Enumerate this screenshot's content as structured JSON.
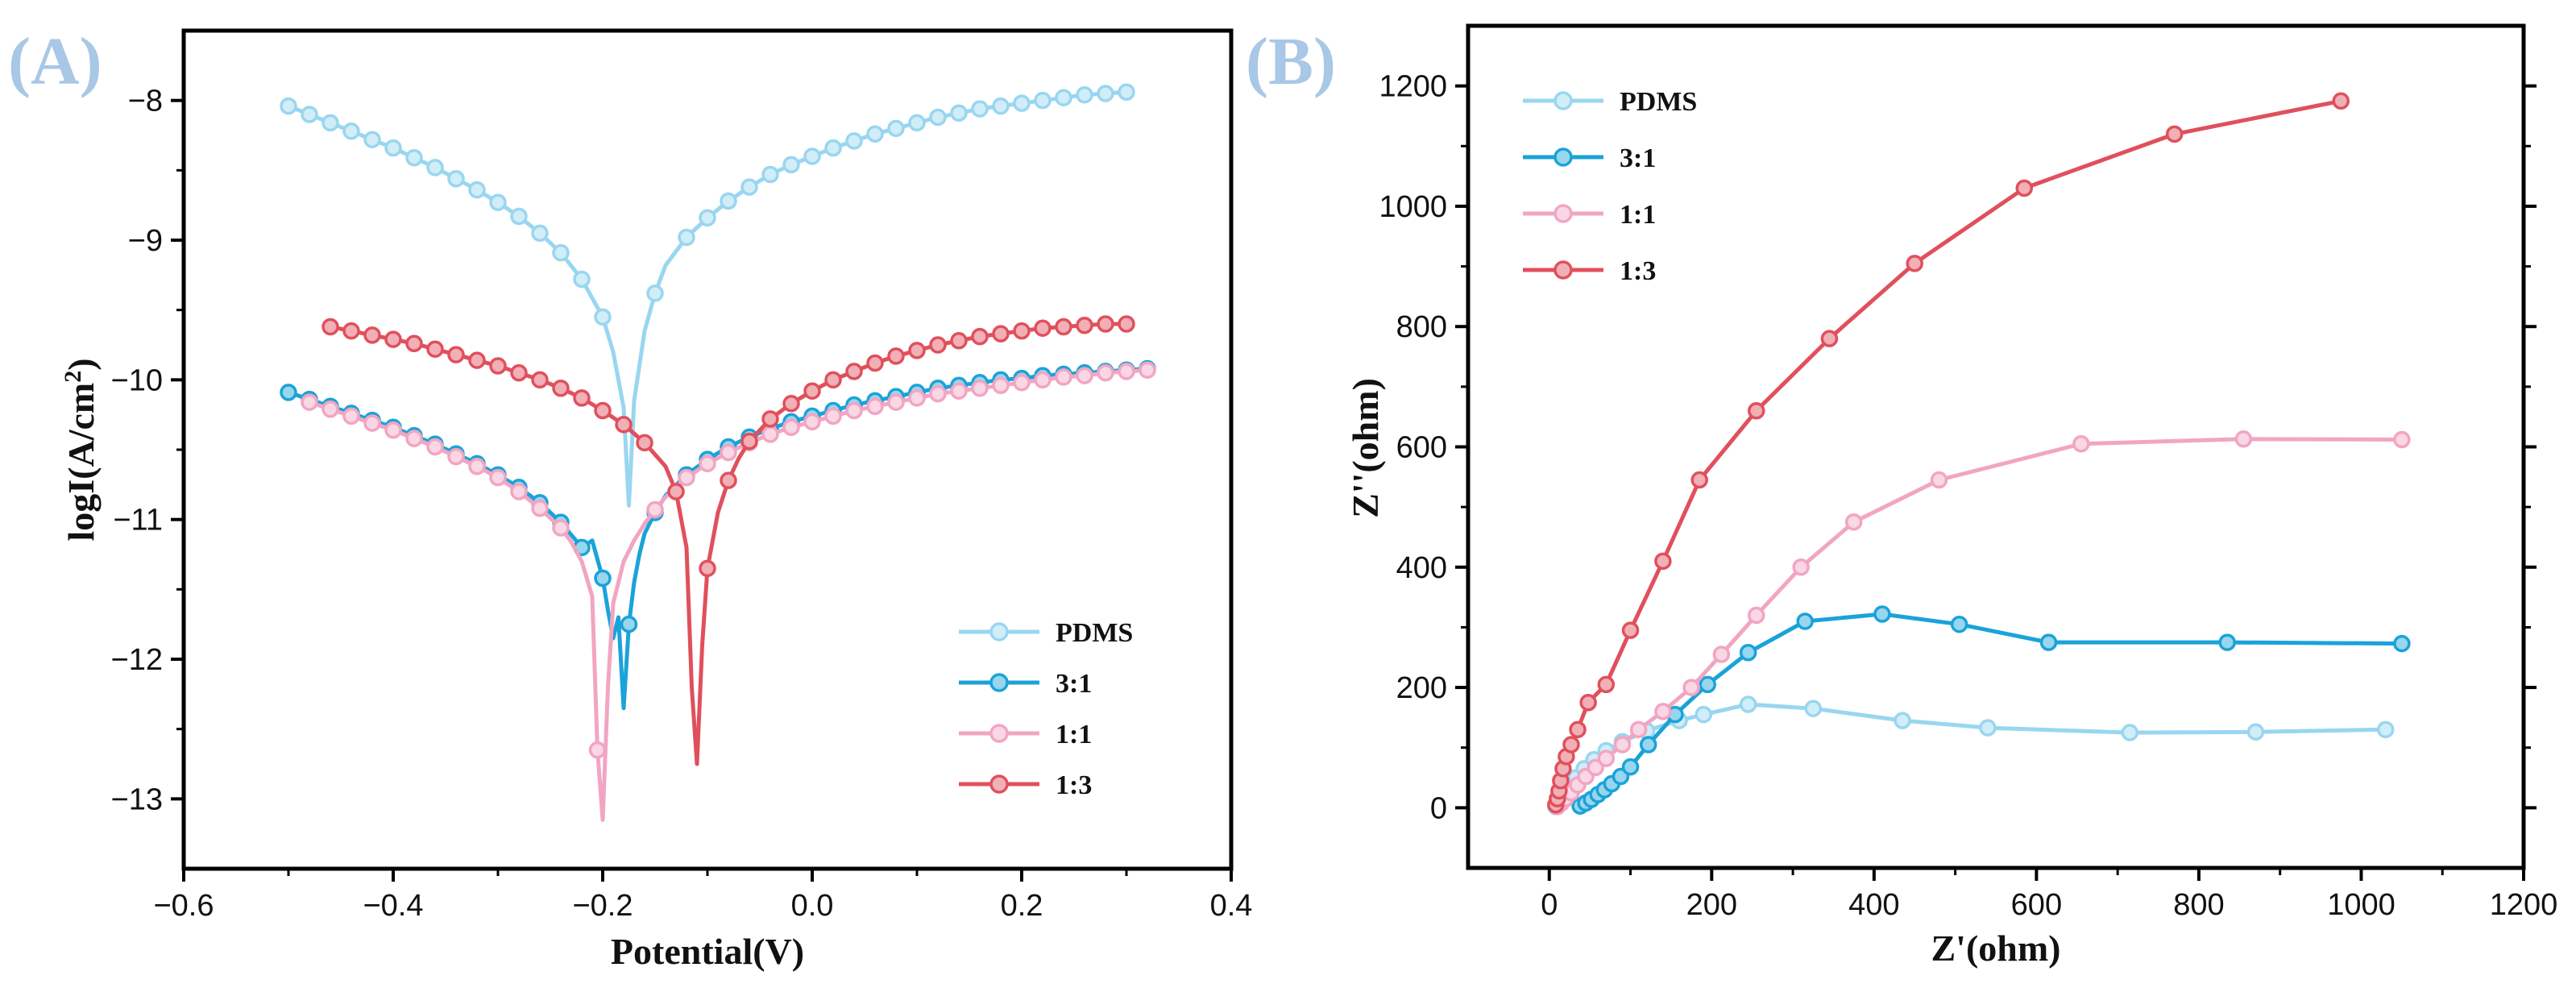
{
  "figure": {
    "panel_a_label": "(A)",
    "panel_b_label": "(B)"
  },
  "chart_data": [
    {
      "type": "line",
      "panel": "A",
      "title": "",
      "xlabel": "Potential(V)",
      "ylabel_main": "logI(A/cm",
      "ylabel_sup": "2",
      "ylabel_close": ")",
      "xlim": [
        -0.6,
        0.4
      ],
      "ylim": [
        -13.5,
        -7.5
      ],
      "xticks": [
        -0.6,
        -0.4,
        -0.2,
        0.0,
        0.2,
        0.4
      ],
      "xtick_labels": [
        "−0.6",
        "−0.4",
        "−0.2",
        "0.0",
        "0.2",
        "0.4"
      ],
      "yticks": [
        -13,
        -12,
        -11,
        -10,
        -9,
        -8
      ],
      "ytick_labels": [
        "−13",
        "−12",
        "−11",
        "−10",
        "−9",
        "−8"
      ],
      "legend_position": "bottom-right",
      "series": [
        {
          "name": "PDMS",
          "color": "#99d6f0",
          "x": [
            -0.5,
            -0.48,
            -0.46,
            -0.44,
            -0.42,
            -0.4,
            -0.38,
            -0.36,
            -0.34,
            -0.32,
            -0.3,
            -0.28,
            -0.26,
            -0.24,
            -0.22,
            -0.2,
            -0.19,
            -0.18,
            -0.175,
            -0.17,
            -0.16,
            -0.15,
            -0.14,
            -0.12,
            -0.1,
            -0.08,
            -0.06,
            -0.04,
            -0.02,
            0.0,
            0.02,
            0.04,
            0.06,
            0.08,
            0.1,
            0.12,
            0.14,
            0.16,
            0.18,
            0.2,
            0.22,
            0.24,
            0.26,
            0.28,
            0.3
          ],
          "y": [
            -8.04,
            -8.1,
            -8.16,
            -8.22,
            -8.28,
            -8.34,
            -8.41,
            -8.48,
            -8.56,
            -8.64,
            -8.73,
            -8.83,
            -8.95,
            -9.09,
            -9.28,
            -9.55,
            -9.8,
            -10.2,
            -10.9,
            -10.15,
            -9.65,
            -9.38,
            -9.18,
            -8.98,
            -8.84,
            -8.72,
            -8.62,
            -8.53,
            -8.46,
            -8.4,
            -8.34,
            -8.29,
            -8.24,
            -8.2,
            -8.16,
            -8.12,
            -8.09,
            -8.06,
            -8.04,
            -8.02,
            -8.0,
            -7.98,
            -7.96,
            -7.95,
            -7.94
          ],
          "markers": [
            -0.5,
            -0.48,
            -0.46,
            -0.44,
            -0.42,
            -0.4,
            -0.38,
            -0.36,
            -0.34,
            -0.32,
            -0.3,
            -0.28,
            -0.26,
            -0.24,
            -0.22,
            -0.2,
            -0.15,
            -0.12,
            -0.1,
            -0.08,
            -0.06,
            -0.04,
            -0.02,
            0.0,
            0.02,
            0.04,
            0.06,
            0.08,
            0.1,
            0.12,
            0.14,
            0.16,
            0.18,
            0.2,
            0.22,
            0.24,
            0.26,
            0.28,
            0.3
          ]
        },
        {
          "name": "3:1",
          "color": "#1aa3d9",
          "x": [
            -0.5,
            -0.48,
            -0.46,
            -0.44,
            -0.42,
            -0.4,
            -0.38,
            -0.36,
            -0.34,
            -0.32,
            -0.3,
            -0.28,
            -0.26,
            -0.24,
            -0.22,
            -0.21,
            -0.2,
            -0.195,
            -0.19,
            -0.185,
            -0.18,
            -0.175,
            -0.17,
            -0.165,
            -0.16,
            -0.15,
            -0.14,
            -0.12,
            -0.1,
            -0.08,
            -0.06,
            -0.04,
            -0.02,
            0.0,
            0.02,
            0.04,
            0.06,
            0.08,
            0.1,
            0.12,
            0.14,
            0.16,
            0.18,
            0.2,
            0.22,
            0.24,
            0.26,
            0.28,
            0.3,
            0.32
          ],
          "y": [
            -10.09,
            -10.14,
            -10.19,
            -10.24,
            -10.29,
            -10.34,
            -10.4,
            -10.46,
            -10.53,
            -10.6,
            -10.68,
            -10.77,
            -10.88,
            -11.02,
            -11.2,
            -11.15,
            -11.42,
            -11.65,
            -11.85,
            -11.7,
            -12.35,
            -11.75,
            -11.45,
            -11.25,
            -11.1,
            -10.95,
            -10.83,
            -10.68,
            -10.57,
            -10.48,
            -10.41,
            -10.35,
            -10.3,
            -10.26,
            -10.22,
            -10.18,
            -10.15,
            -10.12,
            -10.09,
            -10.06,
            -10.04,
            -10.02,
            -10.0,
            -9.99,
            -9.97,
            -9.96,
            -9.95,
            -9.94,
            -9.93,
            -9.92
          ],
          "markers": [
            -0.5,
            -0.48,
            -0.46,
            -0.44,
            -0.42,
            -0.4,
            -0.38,
            -0.36,
            -0.34,
            -0.32,
            -0.3,
            -0.28,
            -0.26,
            -0.24,
            -0.22,
            -0.2,
            -0.175,
            -0.15,
            -0.12,
            -0.1,
            -0.08,
            -0.06,
            -0.04,
            -0.02,
            0.0,
            0.02,
            0.04,
            0.06,
            0.08,
            0.1,
            0.12,
            0.14,
            0.16,
            0.18,
            0.2,
            0.22,
            0.24,
            0.26,
            0.28,
            0.3,
            0.32
          ]
        },
        {
          "name": "1:1",
          "color": "#f2a5c2",
          "x": [
            -0.48,
            -0.46,
            -0.44,
            -0.42,
            -0.4,
            -0.38,
            -0.36,
            -0.34,
            -0.32,
            -0.3,
            -0.28,
            -0.26,
            -0.24,
            -0.23,
            -0.22,
            -0.21,
            -0.205,
            -0.2,
            -0.195,
            -0.19,
            -0.18,
            -0.17,
            -0.16,
            -0.15,
            -0.14,
            -0.12,
            -0.1,
            -0.08,
            -0.06,
            -0.04,
            -0.02,
            0.0,
            0.02,
            0.04,
            0.06,
            0.08,
            0.1,
            0.12,
            0.14,
            0.16,
            0.18,
            0.2,
            0.22,
            0.24,
            0.26,
            0.28,
            0.3,
            0.32
          ],
          "y": [
            -10.16,
            -10.21,
            -10.26,
            -10.31,
            -10.36,
            -10.42,
            -10.48,
            -10.55,
            -10.62,
            -10.7,
            -10.8,
            -10.92,
            -11.06,
            -11.16,
            -11.3,
            -11.55,
            -12.65,
            -13.15,
            -12.2,
            -11.6,
            -11.3,
            -11.15,
            -11.03,
            -10.93,
            -10.84,
            -10.7,
            -10.6,
            -10.52,
            -10.45,
            -10.39,
            -10.34,
            -10.3,
            -10.26,
            -10.22,
            -10.19,
            -10.16,
            -10.13,
            -10.1,
            -10.08,
            -10.06,
            -10.04,
            -10.02,
            -10.0,
            -9.98,
            -9.97,
            -9.95,
            -9.94,
            -9.93
          ],
          "markers": [
            -0.48,
            -0.46,
            -0.44,
            -0.42,
            -0.4,
            -0.38,
            -0.36,
            -0.34,
            -0.32,
            -0.3,
            -0.28,
            -0.26,
            -0.24,
            -0.205,
            -0.15,
            -0.12,
            -0.1,
            -0.08,
            -0.06,
            -0.04,
            -0.02,
            0.0,
            0.02,
            0.04,
            0.06,
            0.08,
            0.1,
            0.12,
            0.14,
            0.16,
            0.18,
            0.2,
            0.22,
            0.24,
            0.26,
            0.28,
            0.3,
            0.32
          ]
        },
        {
          "name": "1:3",
          "color": "#e0505c",
          "x": [
            -0.46,
            -0.44,
            -0.42,
            -0.4,
            -0.38,
            -0.36,
            -0.34,
            -0.32,
            -0.3,
            -0.28,
            -0.26,
            -0.24,
            -0.22,
            -0.2,
            -0.18,
            -0.16,
            -0.14,
            -0.13,
            -0.12,
            -0.115,
            -0.11,
            -0.105,
            -0.1,
            -0.09,
            -0.08,
            -0.07,
            -0.06,
            -0.04,
            -0.02,
            0.0,
            0.02,
            0.04,
            0.06,
            0.08,
            0.1,
            0.12,
            0.14,
            0.16,
            0.18,
            0.2,
            0.22,
            0.24,
            0.26,
            0.28,
            0.3
          ],
          "y": [
            -9.62,
            -9.65,
            -9.68,
            -9.71,
            -9.74,
            -9.78,
            -9.82,
            -9.86,
            -9.9,
            -9.95,
            -10.0,
            -10.06,
            -10.13,
            -10.22,
            -10.32,
            -10.45,
            -10.62,
            -10.8,
            -11.2,
            -12.2,
            -12.75,
            -11.9,
            -11.35,
            -10.95,
            -10.72,
            -10.56,
            -10.44,
            -10.28,
            -10.17,
            -10.08,
            -10.0,
            -9.94,
            -9.88,
            -9.83,
            -9.79,
            -9.75,
            -9.72,
            -9.69,
            -9.67,
            -9.65,
            -9.63,
            -9.62,
            -9.61,
            -9.6,
            -9.6
          ],
          "markers": [
            -0.46,
            -0.44,
            -0.42,
            -0.4,
            -0.38,
            -0.36,
            -0.34,
            -0.32,
            -0.3,
            -0.28,
            -0.26,
            -0.24,
            -0.22,
            -0.2,
            -0.18,
            -0.16,
            -0.13,
            -0.1,
            -0.08,
            -0.06,
            -0.04,
            -0.02,
            0.0,
            0.02,
            0.04,
            0.06,
            0.08,
            0.1,
            0.12,
            0.14,
            0.16,
            0.18,
            0.2,
            0.22,
            0.24,
            0.26,
            0.28,
            0.3
          ]
        }
      ]
    },
    {
      "type": "line",
      "panel": "B",
      "title": "",
      "xlabel": "Z'(ohm)",
      "ylabel": "Z''(ohm)",
      "xlim": [
        -100,
        1200
      ],
      "ylim": [
        -100,
        1300
      ],
      "xticks": [
        0,
        200,
        400,
        600,
        800,
        1000,
        1200
      ],
      "xtick_labels": [
        "0",
        "200",
        "400",
        "600",
        "800",
        "1000",
        "1200"
      ],
      "yticks": [
        0,
        200,
        400,
        600,
        800,
        1000,
        1200
      ],
      "ytick_labels": [
        "0",
        "200",
        "400",
        "600",
        "800",
        "1000",
        "1200"
      ],
      "legend_position": "top-left",
      "series": [
        {
          "name": "PDMS",
          "color": "#99d6f0",
          "x": [
            8,
            12,
            18,
            25,
            33,
            43,
            55,
            70,
            90,
            120,
            160,
            190,
            245,
            325,
            435,
            540,
            715,
            870,
            1030
          ],
          "y": [
            2,
            10,
            22,
            35,
            50,
            65,
            80,
            95,
            110,
            128,
            145,
            155,
            172,
            165,
            145,
            133,
            125,
            126,
            130
          ]
        },
        {
          "name": "3:1",
          "color": "#1aa3d9",
          "x": [
            38,
            45,
            52,
            60,
            68,
            77,
            88,
            100,
            122,
            155,
            195,
            245,
            315,
            410,
            505,
            615,
            835,
            1050
          ],
          "y": [
            3,
            8,
            14,
            22,
            30,
            40,
            52,
            68,
            105,
            155,
            205,
            258,
            310,
            322,
            305,
            275,
            275,
            273
          ]
        },
        {
          "name": "1:1",
          "color": "#f2a5c2",
          "x": [
            10,
            15,
            20,
            27,
            35,
            45,
            57,
            70,
            90,
            110,
            140,
            175,
            212,
            255,
            310,
            375,
            480,
            655,
            855,
            1050
          ],
          "y": [
            2,
            8,
            15,
            25,
            38,
            52,
            67,
            82,
            105,
            130,
            160,
            200,
            255,
            320,
            400,
            475,
            545,
            605,
            613,
            612
          ]
        },
        {
          "name": "1:3",
          "color": "#e0505c",
          "x": [
            8,
            10,
            12,
            14,
            17,
            21,
            27,
            35,
            48,
            70,
            100,
            140,
            185,
            255,
            345,
            450,
            585,
            770,
            975
          ],
          "y": [
            5,
            15,
            28,
            45,
            65,
            85,
            105,
            130,
            175,
            205,
            295,
            410,
            545,
            660,
            780,
            905,
            1030,
            1120,
            1175
          ]
        }
      ]
    }
  ]
}
